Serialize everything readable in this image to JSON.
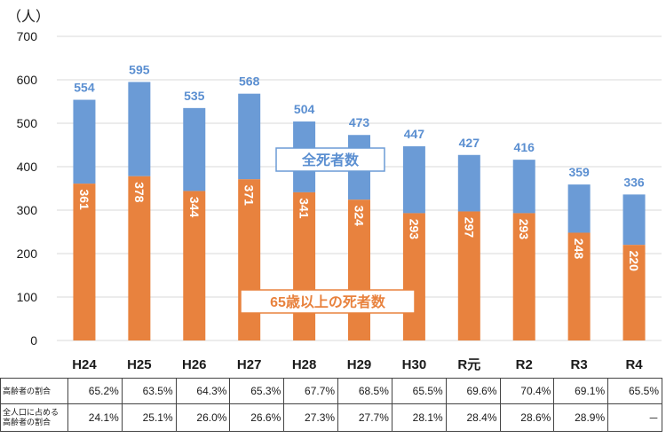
{
  "chart_data": {
    "type": "bar",
    "unit_label": "（人）",
    "categories": [
      "H24",
      "H25",
      "H26",
      "H27",
      "H28",
      "H29",
      "H30",
      "R元",
      "R2",
      "R3",
      "R4"
    ],
    "series": [
      {
        "name": "全死者数",
        "values": [
          554,
          595,
          535,
          568,
          504,
          473,
          447,
          427,
          416,
          359,
          336
        ]
      },
      {
        "name": "65歳以上の死者数",
        "values": [
          361,
          378,
          344,
          371,
          341,
          324,
          293,
          297,
          293,
          248,
          220
        ]
      }
    ],
    "ylim": [
      0,
      700
    ],
    "yticks": [
      0,
      100,
      200,
      300,
      400,
      500,
      600,
      700
    ],
    "colors": {
      "total": "#6b9bd6",
      "elderly": "#e8823e",
      "label_blue": "#5b8fd1"
    },
    "grid": true
  },
  "table": {
    "rows": [
      {
        "label": "高齢者の割合",
        "values": [
          "65.2%",
          "63.5%",
          "64.3%",
          "65.3%",
          "67.7%",
          "68.5%",
          "65.5%",
          "69.6%",
          "70.4%",
          "69.1%",
          "65.5%"
        ]
      },
      {
        "label_line1": "全人口に占める",
        "label_line2": "高齢者の割合",
        "values": [
          "24.1%",
          "25.1%",
          "26.0%",
          "26.6%",
          "27.3%",
          "27.7%",
          "28.1%",
          "28.4%",
          "28.6%",
          "28.9%",
          "－"
        ]
      }
    ]
  }
}
